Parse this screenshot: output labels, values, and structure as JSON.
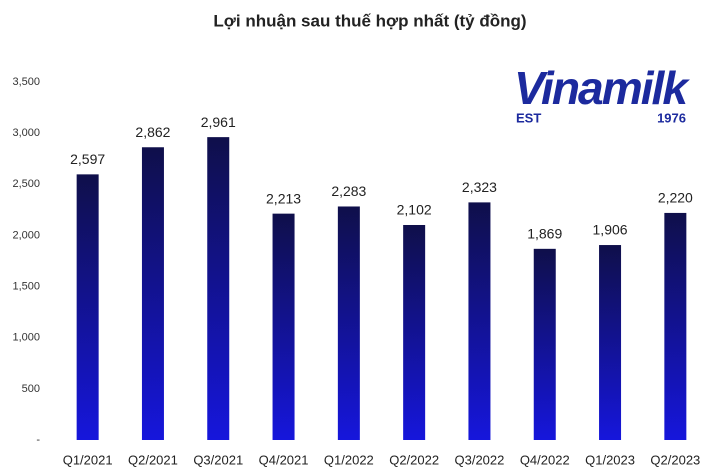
{
  "chart_data": {
    "type": "bar",
    "title": "Lợi nhuận sau thuế hợp nhất (tỷ đồng)",
    "logo": {
      "name": "Vinamilk",
      "est": "EST",
      "year": "1976"
    },
    "categories": [
      "Q1/2021",
      "Q2/2021",
      "Q3/2021",
      "Q4/2021",
      "Q1/2022",
      "Q2/2022",
      "Q3/2022",
      "Q4/2022",
      "Q1/2023",
      "Q2/2023"
    ],
    "values": [
      2597,
      2862,
      2961,
      2213,
      2283,
      2102,
      2323,
      1869,
      1906,
      2220
    ],
    "value_labels": [
      "2,597",
      "2,862",
      "2,961",
      "2,213",
      "2,283",
      "2,102",
      "2,323",
      "1,869",
      "1,906",
      "2,220"
    ],
    "gradient": [
      "#0f0f4a",
      "#1616dc"
    ],
    "ylim": [
      0,
      3500
    ],
    "yticks": [
      {
        "value": 0,
        "label": "-"
      },
      500,
      {
        "value": 1000,
        "label": "1,000"
      },
      {
        "value": 1500,
        "label": "1,500"
      },
      {
        "value": 2000,
        "label": "2,000"
      },
      {
        "value": 2500,
        "label": "2,500"
      },
      {
        "value": 3000,
        "label": "3,000"
      },
      {
        "value": 3500,
        "label": "3,500"
      }
    ],
    "grid": false
  }
}
